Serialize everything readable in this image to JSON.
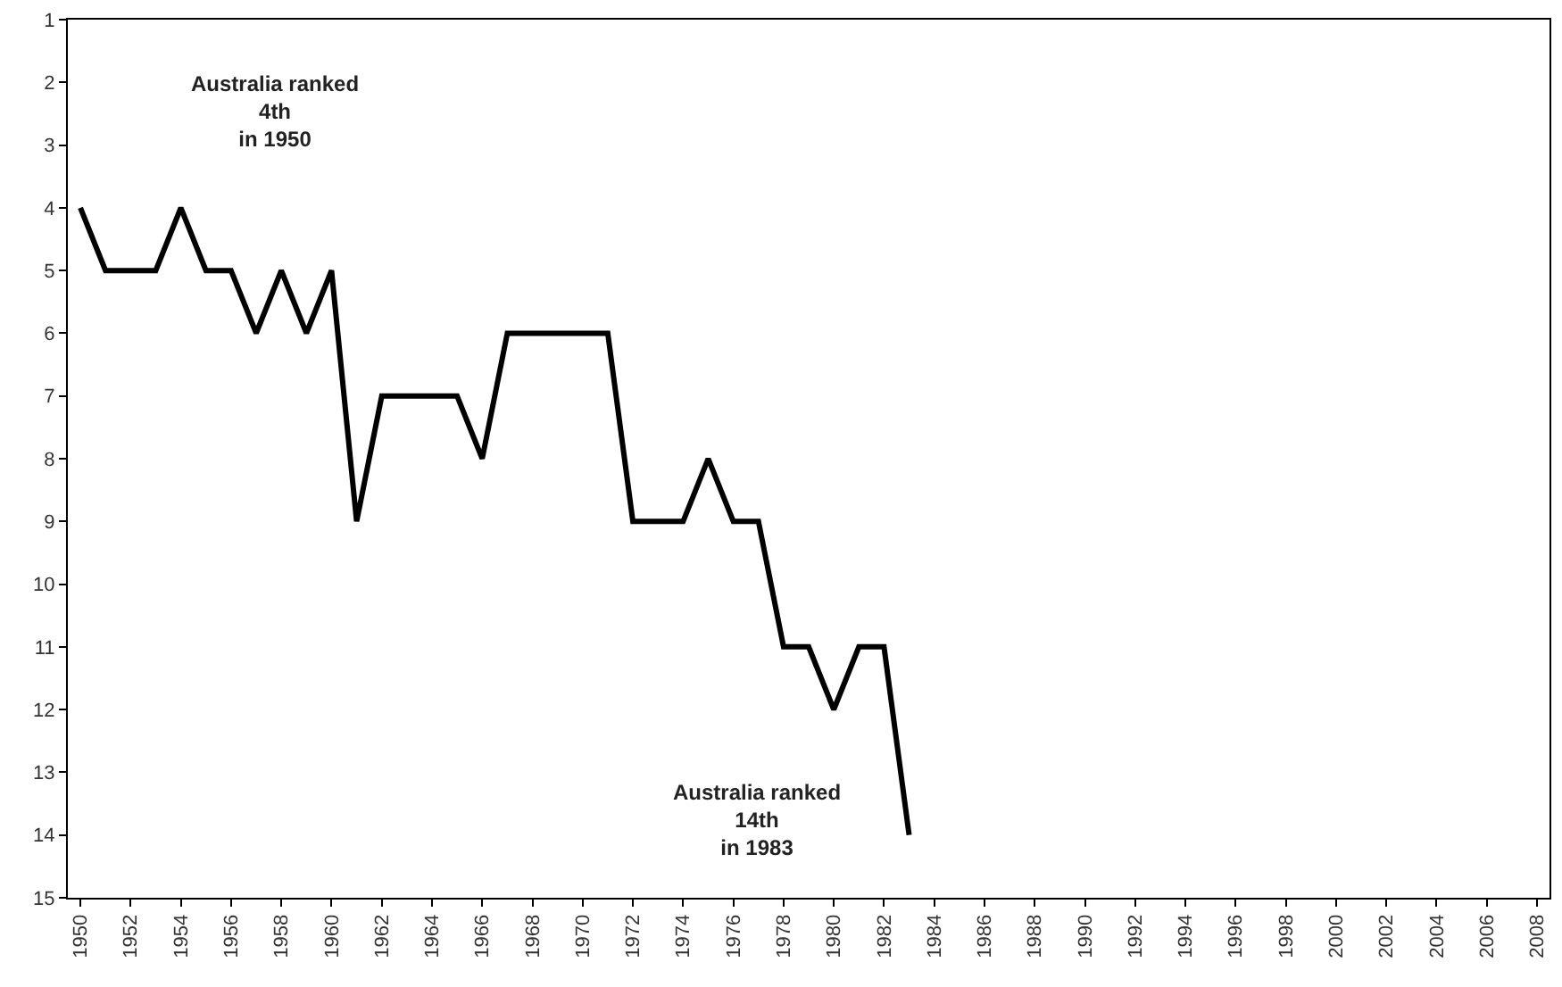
{
  "chart_data": {
    "type": "line",
    "x": [
      1950,
      1951,
      1952,
      1953,
      1954,
      1955,
      1956,
      1957,
      1958,
      1959,
      1960,
      1961,
      1962,
      1963,
      1964,
      1965,
      1966,
      1967,
      1968,
      1969,
      1970,
      1971,
      1972,
      1973,
      1974,
      1975,
      1976,
      1977,
      1978,
      1979,
      1980,
      1981,
      1982,
      1983
    ],
    "series": [
      {
        "color": "#000000",
        "values": [
          4,
          5,
          5,
          5,
          4,
          5,
          5,
          6,
          5,
          6,
          5,
          9,
          7,
          7,
          7,
          7,
          8,
          6,
          6,
          6,
          6,
          6,
          9,
          9,
          9,
          8,
          9,
          9,
          11,
          11,
          12,
          11,
          11,
          14
        ]
      }
    ],
    "xlim": [
      1949.5,
      2008.5
    ],
    "xticks": [
      1950,
      1952,
      1954,
      1956,
      1958,
      1960,
      1962,
      1964,
      1966,
      1968,
      1970,
      1972,
      1974,
      1976,
      1978,
      1980,
      1982,
      1984,
      1986,
      1988,
      1990,
      1992,
      1994,
      1996,
      1998,
      2000,
      2002,
      2004,
      2006,
      2008
    ],
    "ylim": [
      15,
      1
    ],
    "yticks": [
      1,
      2,
      3,
      4,
      5,
      6,
      7,
      8,
      9,
      10,
      11,
      12,
      13,
      14,
      15
    ],
    "marker": "none",
    "line_style": "solid",
    "annotations": [
      "Australia ranked\n4th\nin 1950",
      "Australia ranked\n14th\nin 1983"
    ]
  }
}
